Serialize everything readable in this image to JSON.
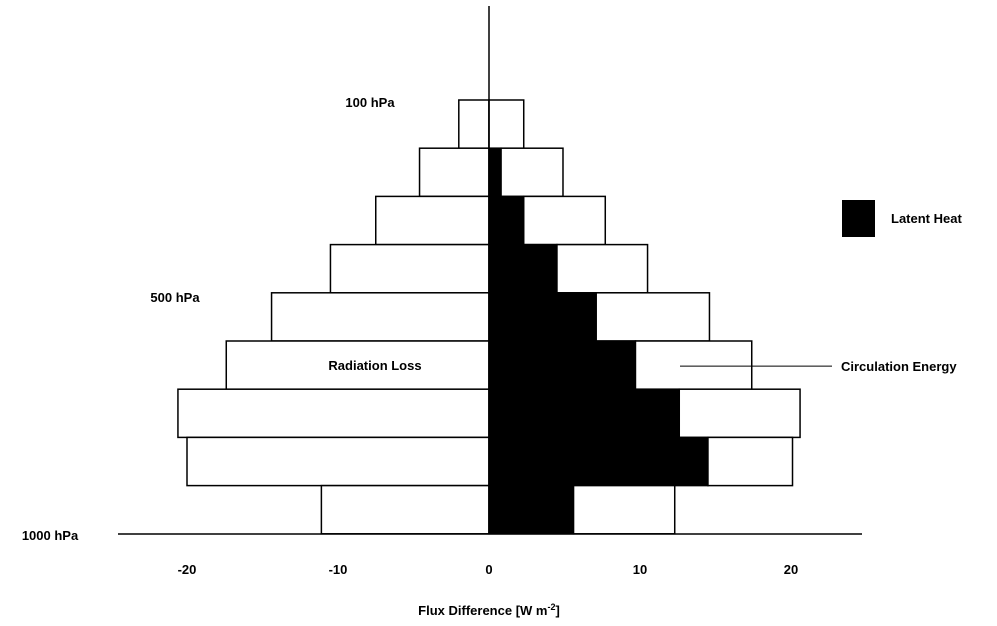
{
  "chart_data": {
    "type": "bar",
    "orientation": "horizontal-diverging-stacked",
    "title": "",
    "xlabel": "Flux Difference [W m",
    "xlabel_superscript": "-2",
    "xlabel_suffix": "]",
    "ylabel": "",
    "xlim": [
      -25,
      25
    ],
    "xticks": [
      -20,
      -10,
      0,
      10,
      20
    ],
    "xtick_labels": [
      "-20",
      "-10",
      "0",
      "10",
      "20"
    ],
    "layers_top_to_bottom": [
      {
        "radiation_loss": -2.0,
        "latent_heat": 0.0,
        "circulation_energy": 2.3
      },
      {
        "radiation_loss": -4.6,
        "latent_heat": 0.8,
        "circulation_energy": 4.9
      },
      {
        "radiation_loss": -7.5,
        "latent_heat": 2.3,
        "circulation_energy": 7.7
      },
      {
        "radiation_loss": -10.5,
        "latent_heat": 4.5,
        "circulation_energy": 10.5
      },
      {
        "radiation_loss": -14.4,
        "latent_heat": 7.1,
        "circulation_energy": 14.6
      },
      {
        "radiation_loss": -17.4,
        "latent_heat": 9.7,
        "circulation_energy": 17.4
      },
      {
        "radiation_loss": -20.6,
        "latent_heat": 12.6,
        "circulation_energy": 20.6
      },
      {
        "radiation_loss": -20.0,
        "latent_heat": 14.5,
        "circulation_energy": 20.1
      },
      {
        "radiation_loss": -11.1,
        "latent_heat": 5.6,
        "circulation_energy": 12.3
      }
    ],
    "level_labels": [
      {
        "text": "100 hPa",
        "layer_index": 0
      },
      {
        "text": "500 hPa",
        "layer_index": 4
      },
      {
        "text": "1000 hPa",
        "layer_index": 9
      }
    ],
    "annotations": {
      "radiation_loss": "Radiation Loss",
      "circulation_energy": "Circulation Energy"
    },
    "legend": {
      "position": "right",
      "entries": [
        {
          "name": "Latent Heat",
          "color": "#000000"
        }
      ]
    },
    "colors": {
      "latent_heat": "#000000",
      "box_fill": "#ffffff",
      "outline": "#000000"
    }
  }
}
